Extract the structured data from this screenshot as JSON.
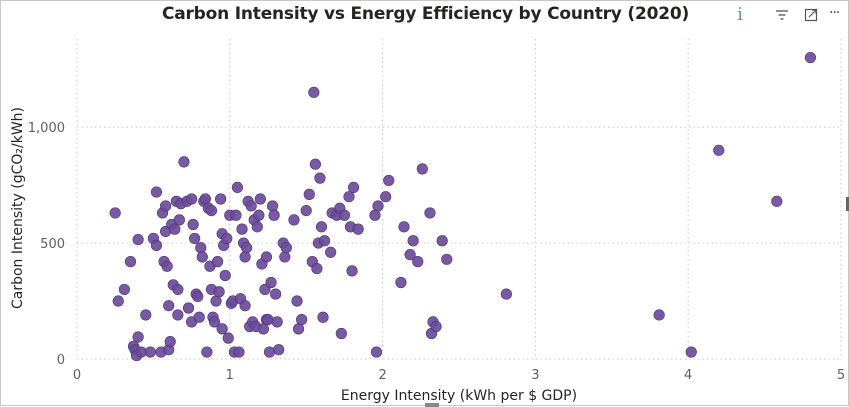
{
  "visual": {
    "info_glyph": "i",
    "more_glyph": "···"
  },
  "chart_data": {
    "type": "scatter",
    "title": "Carbon Intensity vs Energy Efficiency by Country (2020)",
    "xlabel": "Energy Intensity (kWh per $ GDP)",
    "ylabel": "Carbon Intensity (gCO₂/kWh)",
    "xlim": [
      0,
      5
    ],
    "ylim": [
      0,
      1380
    ],
    "x_ticks": [
      0,
      1,
      2,
      3,
      4,
      5
    ],
    "x_tick_labels": [
      "0",
      "1",
      "2",
      "3",
      "4",
      "5"
    ],
    "y_ticks": [
      0,
      500,
      1000
    ],
    "y_tick_labels": [
      "0",
      "500",
      "1,000"
    ],
    "grid": "dotted",
    "legend": "none",
    "marker_color": "#6b4c9a",
    "points": [
      [
        0.25,
        630
      ],
      [
        0.27,
        250
      ],
      [
        0.31,
        300
      ],
      [
        0.35,
        420
      ],
      [
        0.37,
        55
      ],
      [
        0.38,
        40
      ],
      [
        0.39,
        15
      ],
      [
        0.4,
        95
      ],
      [
        0.4,
        515
      ],
      [
        0.42,
        30
      ],
      [
        0.45,
        190
      ],
      [
        0.48,
        30
      ],
      [
        0.5,
        520
      ],
      [
        0.52,
        720
      ],
      [
        0.52,
        490
      ],
      [
        0.55,
        30
      ],
      [
        0.56,
        630
      ],
      [
        0.57,
        420
      ],
      [
        0.58,
        550
      ],
      [
        0.58,
        660
      ],
      [
        0.59,
        400
      ],
      [
        0.6,
        230
      ],
      [
        0.6,
        40
      ],
      [
        0.61,
        75
      ],
      [
        0.62,
        580
      ],
      [
        0.63,
        320
      ],
      [
        0.64,
        560
      ],
      [
        0.65,
        680
      ],
      [
        0.66,
        300
      ],
      [
        0.66,
        190
      ],
      [
        0.67,
        600
      ],
      [
        0.68,
        670
      ],
      [
        0.7,
        850
      ],
      [
        0.72,
        680
      ],
      [
        0.73,
        220
      ],
      [
        0.75,
        160
      ],
      [
        0.75,
        690
      ],
      [
        0.76,
        580
      ],
      [
        0.77,
        520
      ],
      [
        0.78,
        280
      ],
      [
        0.79,
        270
      ],
      [
        0.8,
        180
      ],
      [
        0.81,
        480
      ],
      [
        0.82,
        440
      ],
      [
        0.83,
        680
      ],
      [
        0.84,
        690
      ],
      [
        0.85,
        30
      ],
      [
        0.86,
        650
      ],
      [
        0.87,
        400
      ],
      [
        0.88,
        640
      ],
      [
        0.88,
        300
      ],
      [
        0.89,
        180
      ],
      [
        0.9,
        160
      ],
      [
        0.91,
        250
      ],
      [
        0.92,
        420
      ],
      [
        0.93,
        290
      ],
      [
        0.94,
        690
      ],
      [
        0.95,
        540
      ],
      [
        0.95,
        130
      ],
      [
        0.96,
        490
      ],
      [
        0.97,
        360
      ],
      [
        0.98,
        520
      ],
      [
        0.99,
        90
      ],
      [
        1.0,
        620
      ],
      [
        1.01,
        240
      ],
      [
        1.02,
        250
      ],
      [
        1.03,
        30
      ],
      [
        1.04,
        620
      ],
      [
        1.05,
        740
      ],
      [
        1.06,
        30
      ],
      [
        1.07,
        260
      ],
      [
        1.08,
        560
      ],
      [
        1.09,
        500
      ],
      [
        1.1,
        230
      ],
      [
        1.1,
        440
      ],
      [
        1.11,
        480
      ],
      [
        1.12,
        680
      ],
      [
        1.13,
        140
      ],
      [
        1.14,
        660
      ],
      [
        1.15,
        160
      ],
      [
        1.16,
        600
      ],
      [
        1.17,
        140
      ],
      [
        1.18,
        570
      ],
      [
        1.19,
        620
      ],
      [
        1.2,
        690
      ],
      [
        1.21,
        410
      ],
      [
        1.22,
        130
      ],
      [
        1.23,
        300
      ],
      [
        1.24,
        170
      ],
      [
        1.24,
        440
      ],
      [
        1.25,
        170
      ],
      [
        1.26,
        30
      ],
      [
        1.27,
        330
      ],
      [
        1.28,
        660
      ],
      [
        1.29,
        620
      ],
      [
        1.3,
        280
      ],
      [
        1.31,
        160
      ],
      [
        1.32,
        40
      ],
      [
        1.35,
        500
      ],
      [
        1.36,
        440
      ],
      [
        1.37,
        480
      ],
      [
        1.42,
        600
      ],
      [
        1.44,
        250
      ],
      [
        1.45,
        130
      ],
      [
        1.47,
        170
      ],
      [
        1.5,
        640
      ],
      [
        1.52,
        710
      ],
      [
        1.54,
        420
      ],
      [
        1.55,
        1150
      ],
      [
        1.56,
        840
      ],
      [
        1.57,
        390
      ],
      [
        1.58,
        500
      ],
      [
        1.59,
        780
      ],
      [
        1.6,
        570
      ],
      [
        1.61,
        180
      ],
      [
        1.62,
        510
      ],
      [
        1.66,
        460
      ],
      [
        1.67,
        630
      ],
      [
        1.7,
        620
      ],
      [
        1.72,
        650
      ],
      [
        1.73,
        110
      ],
      [
        1.75,
        620
      ],
      [
        1.78,
        700
      ],
      [
        1.79,
        570
      ],
      [
        1.8,
        380
      ],
      [
        1.81,
        740
      ],
      [
        1.84,
        560
      ],
      [
        1.95,
        620
      ],
      [
        1.96,
        30
      ],
      [
        1.97,
        660
      ],
      [
        2.02,
        700
      ],
      [
        2.04,
        770
      ],
      [
        2.12,
        330
      ],
      [
        2.14,
        570
      ],
      [
        2.18,
        450
      ],
      [
        2.2,
        510
      ],
      [
        2.23,
        420
      ],
      [
        2.26,
        820
      ],
      [
        2.31,
        630
      ],
      [
        2.32,
        110
      ],
      [
        2.33,
        160
      ],
      [
        2.35,
        140
      ],
      [
        2.39,
        510
      ],
      [
        2.42,
        430
      ],
      [
        2.81,
        280
      ],
      [
        3.81,
        190
      ],
      [
        4.02,
        30
      ],
      [
        4.2,
        900
      ],
      [
        4.58,
        680
      ],
      [
        4.8,
        1300
      ]
    ]
  }
}
